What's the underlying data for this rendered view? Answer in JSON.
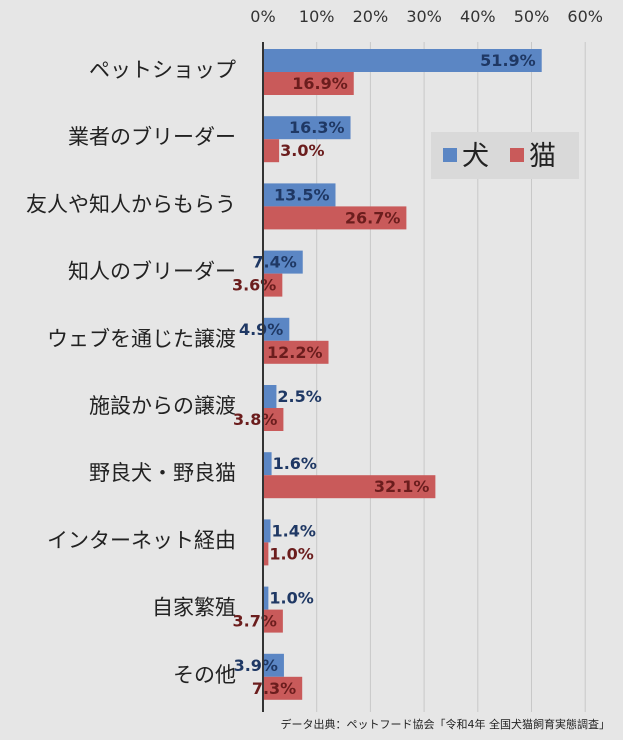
{
  "chart_data": {
    "type": "bar",
    "orientation": "horizontal",
    "categories": [
      "ペットショップ",
      "業者のブリーダー",
      "友人や知人からもらう",
      "知人のブリーダー",
      "ウェブを通じた譲渡",
      "施設からの譲渡",
      "野良犬・野良猫",
      "インターネット経由",
      "自家繁殖",
      "その他"
    ],
    "series": [
      {
        "name": "犬",
        "color": "#5b86c4",
        "values": [
          51.9,
          16.3,
          13.5,
          7.4,
          4.9,
          2.5,
          1.6,
          1.4,
          1.0,
          3.9
        ],
        "labels": [
          "51.9%",
          "16.3%",
          "13.5%",
          "7.4%",
          "4.9%",
          "2.5%",
          "1.6%",
          "1.4%",
          "1.0%",
          "3.9%"
        ]
      },
      {
        "name": "猫",
        "color": "#c95a5a",
        "values": [
          16.9,
          3.0,
          26.7,
          3.6,
          12.2,
          3.8,
          32.1,
          1.0,
          3.7,
          7.3
        ],
        "labels": [
          "16.9%",
          "3.0%",
          "26.7%",
          "3.6%",
          "12.2%",
          "3.8%",
          "32.1%",
          "1.0%",
          "3.7%",
          "7.3%"
        ]
      }
    ],
    "xlim": [
      0,
      60
    ],
    "ticks": [
      "0%",
      "10%",
      "20%",
      "30%",
      "40%",
      "50%",
      "60%"
    ],
    "grid": true,
    "legend_position": "right",
    "source": "データ出典：ペットフード協会「令和4年 全国犬猫飼育実態調査」"
  }
}
